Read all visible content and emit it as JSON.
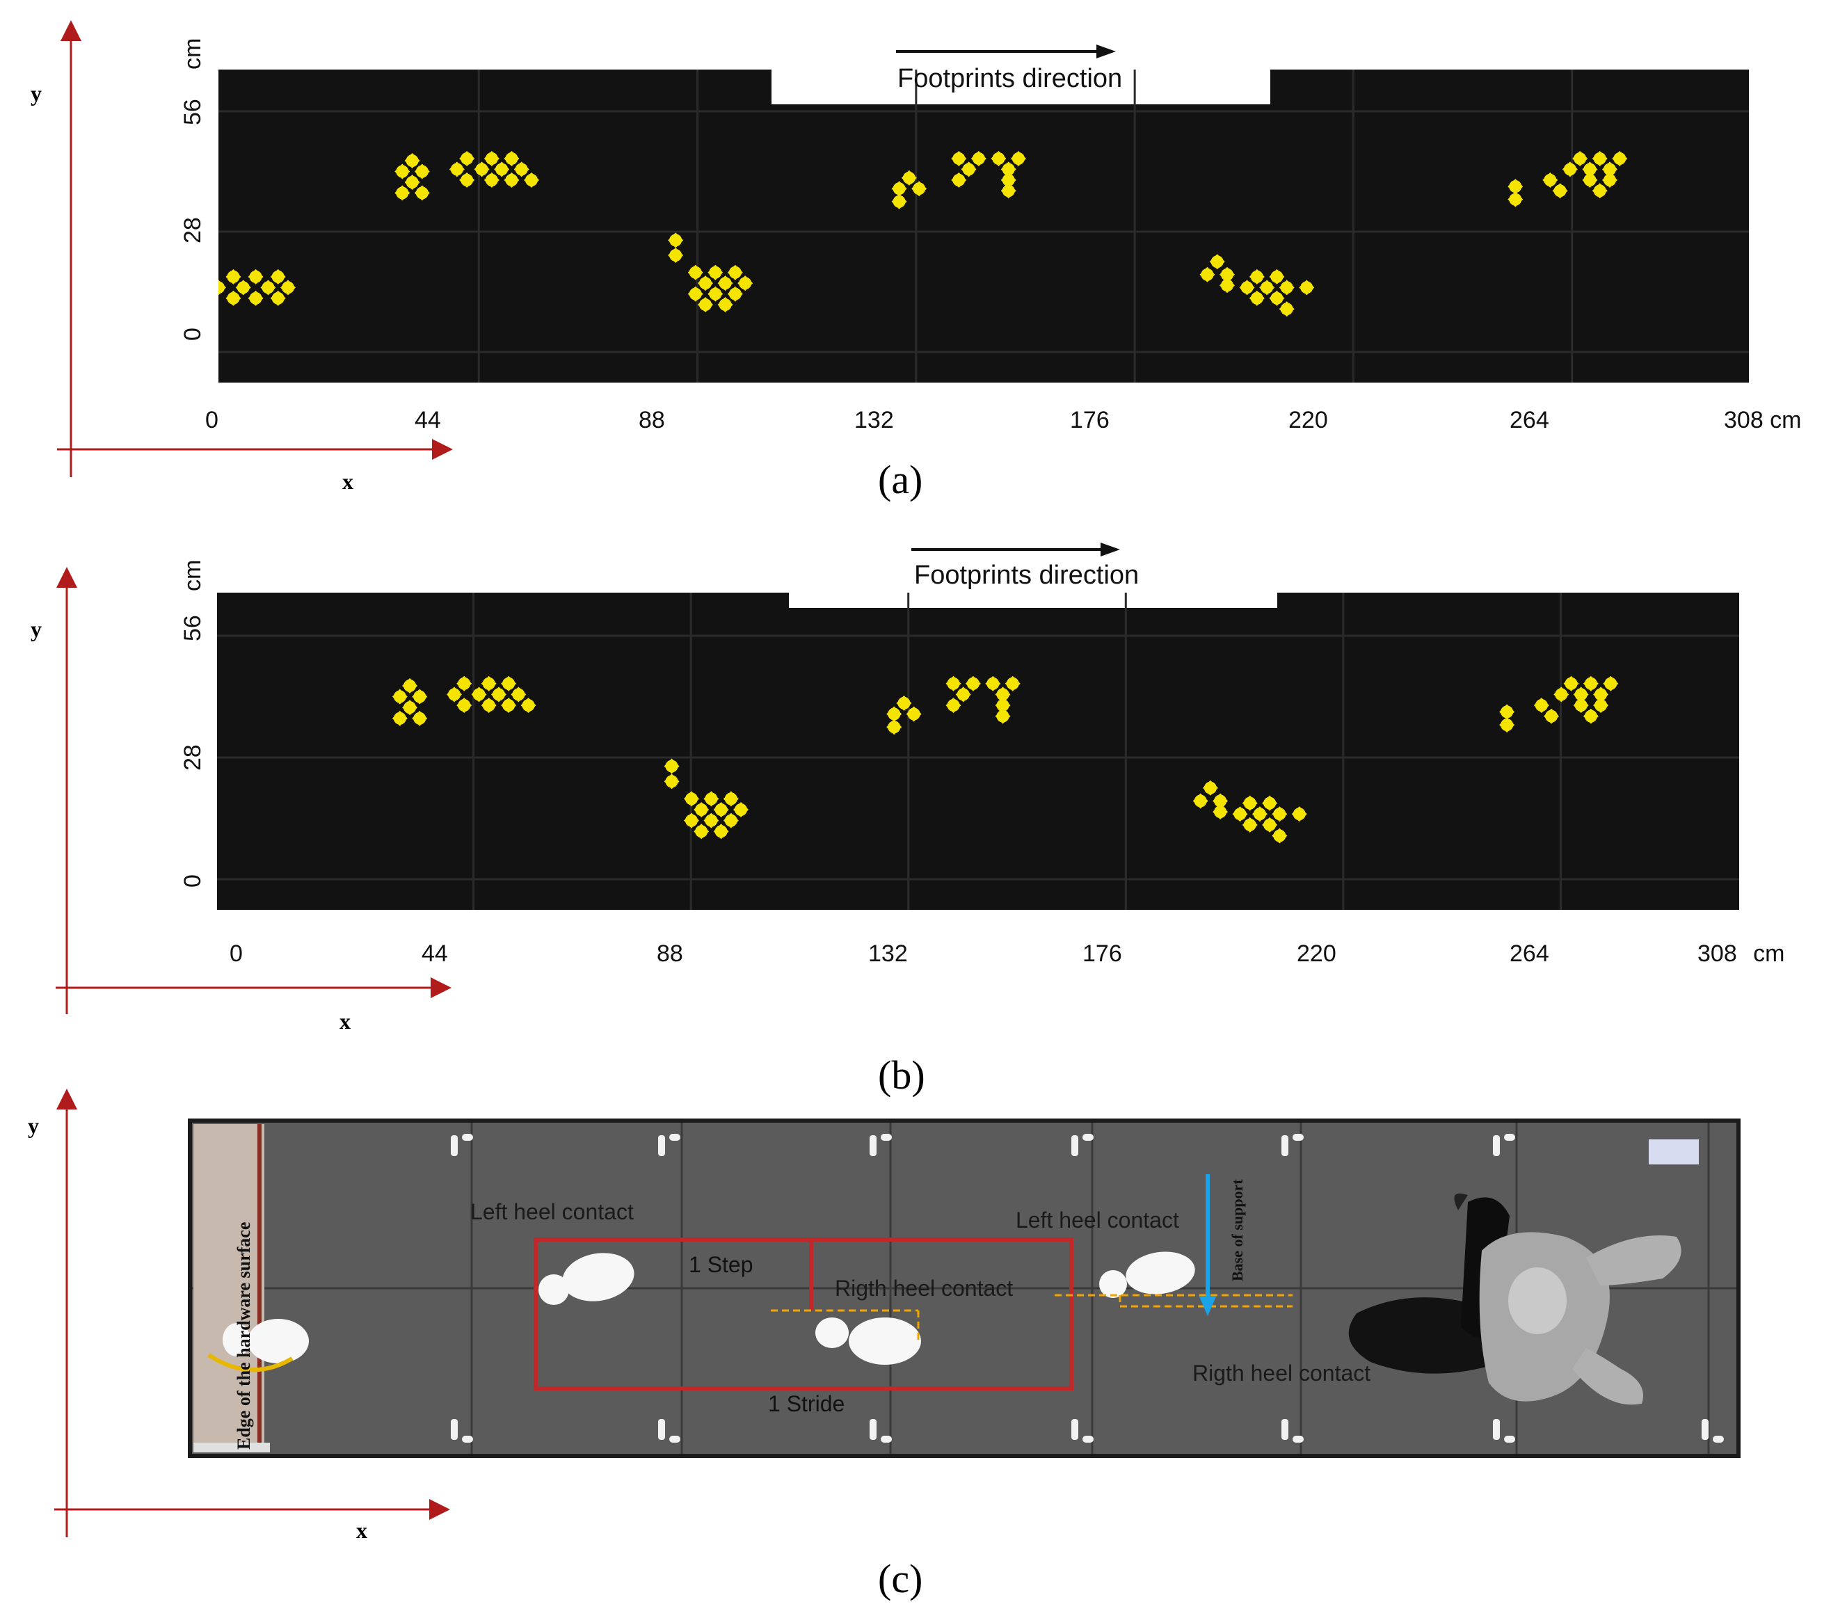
{
  "panels": [
    {
      "id": "a",
      "caption": "(a)",
      "axis_x": "x",
      "axis_y": "y",
      "direction_label": "Footprints direction",
      "x_ticks": [
        "0",
        "44",
        "88",
        "132",
        "176",
        "220",
        "264",
        "308 cm"
      ],
      "y_ticks": [
        "0",
        "28",
        "56"
      ],
      "y_unit": "cm",
      "footprints": [
        {
          "x": 0,
          "y": 15
        },
        {
          "x": 5,
          "y": 15
        },
        {
          "x": 10,
          "y": 15
        },
        {
          "x": 14,
          "y": 15
        },
        {
          "x": 3,
          "y": 17.5
        },
        {
          "x": 7.5,
          "y": 17.5
        },
        {
          "x": 12,
          "y": 17.5
        },
        {
          "x": 3,
          "y": 12.5
        },
        {
          "x": 7.5,
          "y": 12.5
        },
        {
          "x": 12,
          "y": 12.5
        },
        {
          "x": 37,
          "y": 42
        },
        {
          "x": 41,
          "y": 42
        },
        {
          "x": 39,
          "y": 44.5
        },
        {
          "x": 39,
          "y": 39.5
        },
        {
          "x": 37,
          "y": 37
        },
        {
          "x": 41,
          "y": 37
        },
        {
          "x": 48,
          "y": 42.5
        },
        {
          "x": 53,
          "y": 42.5
        },
        {
          "x": 57,
          "y": 42.5
        },
        {
          "x": 61,
          "y": 42.5
        },
        {
          "x": 50,
          "y": 45
        },
        {
          "x": 55,
          "y": 45
        },
        {
          "x": 59,
          "y": 45
        },
        {
          "x": 50,
          "y": 40
        },
        {
          "x": 55,
          "y": 40
        },
        {
          "x": 59,
          "y": 40
        },
        {
          "x": 63,
          "y": 40
        },
        {
          "x": 92,
          "y": 26
        },
        {
          "x": 92,
          "y": 22.5
        },
        {
          "x": 96,
          "y": 18.5
        },
        {
          "x": 100,
          "y": 18.5
        },
        {
          "x": 104,
          "y": 18.5
        },
        {
          "x": 98,
          "y": 16
        },
        {
          "x": 102,
          "y": 16
        },
        {
          "x": 106,
          "y": 16
        },
        {
          "x": 96,
          "y": 13.5
        },
        {
          "x": 100,
          "y": 13.5
        },
        {
          "x": 104,
          "y": 13.5
        },
        {
          "x": 98,
          "y": 11
        },
        {
          "x": 102,
          "y": 11
        },
        {
          "x": 137,
          "y": 38
        },
        {
          "x": 141,
          "y": 38
        },
        {
          "x": 137,
          "y": 35
        },
        {
          "x": 139,
          "y": 40.5
        },
        {
          "x": 149,
          "y": 45
        },
        {
          "x": 153,
          "y": 45
        },
        {
          "x": 157,
          "y": 45
        },
        {
          "x": 161,
          "y": 45
        },
        {
          "x": 151,
          "y": 42.5
        },
        {
          "x": 159,
          "y": 42.5
        },
        {
          "x": 149,
          "y": 40
        },
        {
          "x": 159,
          "y": 40
        },
        {
          "x": 159,
          "y": 37.5
        },
        {
          "x": 199,
          "y": 18
        },
        {
          "x": 203,
          "y": 18
        },
        {
          "x": 201,
          "y": 21
        },
        {
          "x": 203,
          "y": 15.5
        },
        {
          "x": 207,
          "y": 15
        },
        {
          "x": 211,
          "y": 15
        },
        {
          "x": 215,
          "y": 15
        },
        {
          "x": 219,
          "y": 15
        },
        {
          "x": 209,
          "y": 17.5
        },
        {
          "x": 213,
          "y": 17.5
        },
        {
          "x": 209,
          "y": 12.5
        },
        {
          "x": 213,
          "y": 12.5
        },
        {
          "x": 215,
          "y": 10
        },
        {
          "x": 261,
          "y": 38.5
        },
        {
          "x": 261,
          "y": 35.5
        },
        {
          "x": 268,
          "y": 40
        },
        {
          "x": 272,
          "y": 42.5
        },
        {
          "x": 276,
          "y": 42.5
        },
        {
          "x": 280,
          "y": 42.5
        },
        {
          "x": 274,
          "y": 45
        },
        {
          "x": 278,
          "y": 45
        },
        {
          "x": 282,
          "y": 45
        },
        {
          "x": 270,
          "y": 37.5
        },
        {
          "x": 276,
          "y": 40
        },
        {
          "x": 280,
          "y": 40
        },
        {
          "x": 278,
          "y": 37.5
        }
      ]
    },
    {
      "id": "b",
      "caption": "(b)",
      "axis_x": "x",
      "axis_y": "y",
      "direction_label": "Footprints direction",
      "x_ticks": [
        "0",
        "44",
        "88",
        "132",
        "176",
        "220",
        "264",
        "308 cm"
      ],
      "y_ticks": [
        "0",
        "28",
        "56"
      ],
      "y_unit": "cm",
      "footprints": [
        {
          "x": 37,
          "y": 42
        },
        {
          "x": 41,
          "y": 42
        },
        {
          "x": 39,
          "y": 44.5
        },
        {
          "x": 39,
          "y": 39.5
        },
        {
          "x": 37,
          "y": 37
        },
        {
          "x": 41,
          "y": 37
        },
        {
          "x": 48,
          "y": 42.5
        },
        {
          "x": 53,
          "y": 42.5
        },
        {
          "x": 57,
          "y": 42.5
        },
        {
          "x": 61,
          "y": 42.5
        },
        {
          "x": 50,
          "y": 45
        },
        {
          "x": 55,
          "y": 45
        },
        {
          "x": 59,
          "y": 45
        },
        {
          "x": 50,
          "y": 40
        },
        {
          "x": 55,
          "y": 40
        },
        {
          "x": 59,
          "y": 40
        },
        {
          "x": 63,
          "y": 40
        },
        {
          "x": 92,
          "y": 26
        },
        {
          "x": 92,
          "y": 22.5
        },
        {
          "x": 96,
          "y": 18.5
        },
        {
          "x": 100,
          "y": 18.5
        },
        {
          "x": 104,
          "y": 18.5
        },
        {
          "x": 98,
          "y": 16
        },
        {
          "x": 102,
          "y": 16
        },
        {
          "x": 106,
          "y": 16
        },
        {
          "x": 96,
          "y": 13.5
        },
        {
          "x": 100,
          "y": 13.5
        },
        {
          "x": 104,
          "y": 13.5
        },
        {
          "x": 98,
          "y": 11
        },
        {
          "x": 102,
          "y": 11
        },
        {
          "x": 137,
          "y": 38
        },
        {
          "x": 141,
          "y": 38
        },
        {
          "x": 137,
          "y": 35
        },
        {
          "x": 139,
          "y": 40.5
        },
        {
          "x": 149,
          "y": 45
        },
        {
          "x": 153,
          "y": 45
        },
        {
          "x": 157,
          "y": 45
        },
        {
          "x": 161,
          "y": 45
        },
        {
          "x": 151,
          "y": 42.5
        },
        {
          "x": 159,
          "y": 42.5
        },
        {
          "x": 149,
          "y": 40
        },
        {
          "x": 159,
          "y": 40
        },
        {
          "x": 159,
          "y": 37.5
        },
        {
          "x": 199,
          "y": 18
        },
        {
          "x": 203,
          "y": 18
        },
        {
          "x": 201,
          "y": 21
        },
        {
          "x": 203,
          "y": 15.5
        },
        {
          "x": 207,
          "y": 15
        },
        {
          "x": 211,
          "y": 15
        },
        {
          "x": 215,
          "y": 15
        },
        {
          "x": 219,
          "y": 15
        },
        {
          "x": 209,
          "y": 17.5
        },
        {
          "x": 213,
          "y": 17.5
        },
        {
          "x": 209,
          "y": 12.5
        },
        {
          "x": 213,
          "y": 12.5
        },
        {
          "x": 215,
          "y": 10
        },
        {
          "x": 261,
          "y": 38.5
        },
        {
          "x": 261,
          "y": 35.5
        },
        {
          "x": 268,
          "y": 40
        },
        {
          "x": 272,
          "y": 42.5
        },
        {
          "x": 276,
          "y": 42.5
        },
        {
          "x": 280,
          "y": 42.5
        },
        {
          "x": 274,
          "y": 45
        },
        {
          "x": 278,
          "y": 45
        },
        {
          "x": 282,
          "y": 45
        },
        {
          "x": 270,
          "y": 37.5
        },
        {
          "x": 276,
          "y": 40
        },
        {
          "x": 280,
          "y": 40
        },
        {
          "x": 278,
          "y": 37.5
        }
      ]
    },
    {
      "id": "c",
      "caption": "(c)",
      "axis_x": "x",
      "axis_y": "y",
      "labels": {
        "edge": "Edge of the hardware surface",
        "left_heel_1": "Left heel contact",
        "left_heel_2": "Left heel contact",
        "right_heel_1": "Rigth heel contact",
        "right_heel_2": "Rigth heel contact",
        "step": "1 Step",
        "stride": "1 Stride",
        "base": "Base of support"
      }
    }
  ],
  "colors": {
    "axis_red": "#b01c1c",
    "mat_black": "#121212",
    "marker_yellow": "#f5e400",
    "floor_gray": "#5a5a5a",
    "stride_box_red": "#c0282a",
    "dashed_orange": "#f0a500",
    "arrow_blue": "#1aa3e8"
  }
}
